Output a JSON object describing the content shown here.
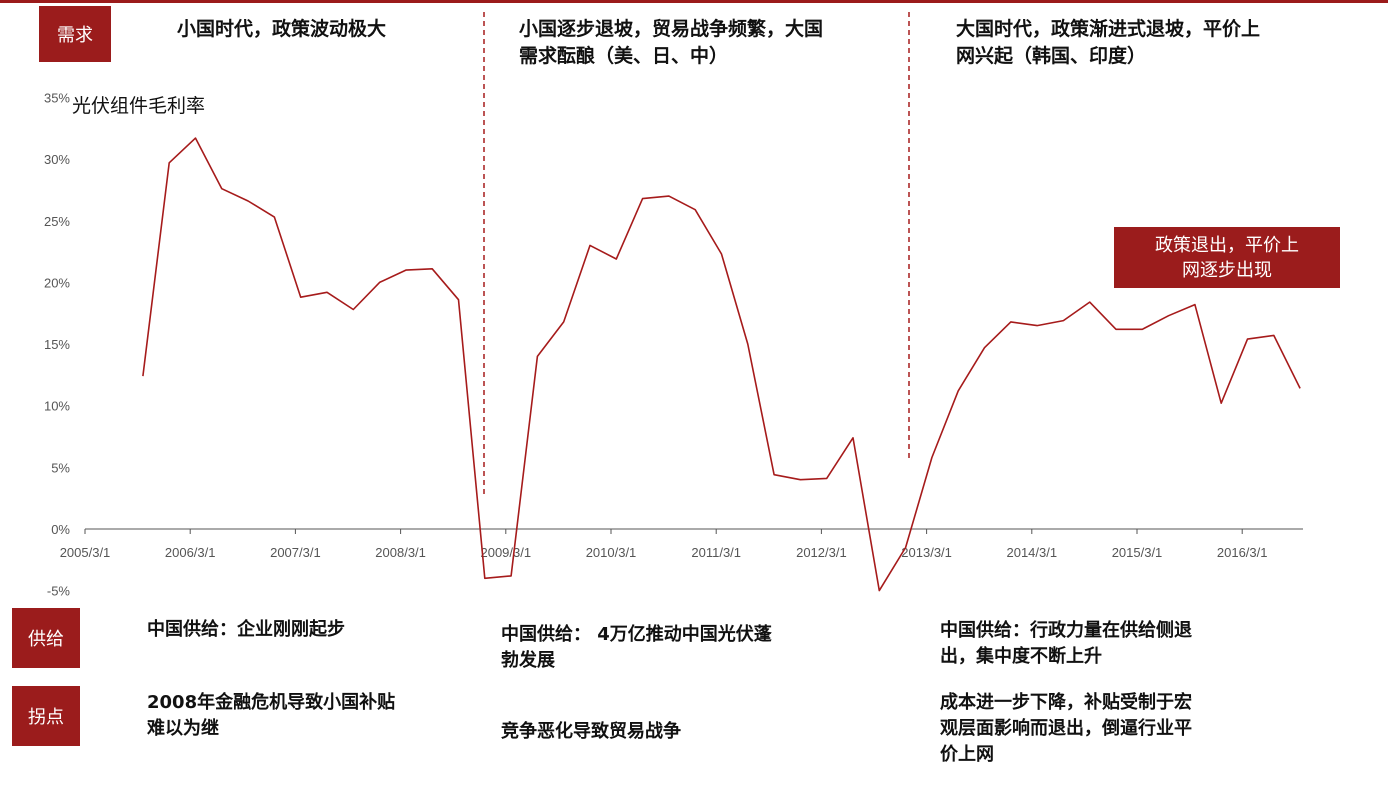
{
  "labels": {
    "demand": "需求",
    "supply": "供给",
    "turning_point": "拐点"
  },
  "phases": [
    "小国时代，政策波动极大",
    "小国逐步退坡，贸易战争频繁，大国\n需求酝酿（美、日、中）",
    "大国时代，政策渐进式退坡，平价上\n网兴起（韩国、印度）"
  ],
  "callout": "政策退出，平价上\n网逐步出现",
  "supply_notes": [
    "中国供给：企业刚刚起步",
    "中国供给： 4万亿推动中国光伏蓬\n勃发展",
    "中国供给：行政力量在供给侧退\n出，集中度不断上升"
  ],
  "turning_notes": [
    "2008年金融危机导致小国补贴\n难以为继",
    "竞争恶化导致贸易战争",
    "成本进一步下降，补贴受制于宏\n观层面影响而退出，倒逼行业平\n价上网"
  ],
  "chart_data": {
    "type": "line",
    "title": "",
    "ylabel": "光伏组件毛利率",
    "xlabel": "",
    "ylim": [
      -0.05,
      0.35
    ],
    "xlim": [
      2005.0,
      2016.6
    ],
    "grid": false,
    "yticks": [
      "-5%",
      "0%",
      "5%",
      "10%",
      "15%",
      "20%",
      "25%",
      "30%",
      "35%"
    ],
    "xticks": [
      "2005/3/1",
      "2006/3/1",
      "2007/3/1",
      "2008/3/1",
      "2009/3/1",
      "2010/3/1",
      "2011/3/1",
      "2012/3/1",
      "2013/3/1",
      "2014/3/1",
      "2015/3/1",
      "2016/3/1"
    ],
    "phase_dividers_x": [
      2008.8,
      2012.8
    ],
    "series": [
      {
        "name": "",
        "color": "#a61b1b",
        "x": [
          2005.55,
          2005.8,
          2006.05,
          2006.3,
          2006.55,
          2006.8,
          2007.05,
          2007.3,
          2007.55,
          2007.8,
          2008.05,
          2008.3,
          2008.55,
          2008.8,
          2009.05,
          2009.3,
          2009.55,
          2009.8,
          2010.05,
          2010.3,
          2010.55,
          2010.8,
          2011.05,
          2011.3,
          2011.55,
          2011.8,
          2012.05,
          2012.3,
          2012.55,
          2012.8,
          2013.05,
          2013.3,
          2013.55,
          2013.8,
          2014.05,
          2014.3,
          2014.55,
          2014.8,
          2015.05,
          2015.3,
          2015.55,
          2015.8,
          2016.05,
          2016.3,
          2016.55
        ],
        "y": [
          0.124,
          0.297,
          0.317,
          0.276,
          0.266,
          0.253,
          0.188,
          0.192,
          0.178,
          0.2,
          0.21,
          0.211,
          0.186,
          -0.04,
          -0.038,
          0.14,
          0.168,
          0.23,
          0.219,
          0.268,
          0.27,
          0.259,
          0.223,
          0.15,
          0.044,
          0.04,
          0.041,
          0.074,
          -0.05,
          -0.015,
          0.058,
          0.112,
          0.147,
          0.168,
          0.165,
          0.169,
          0.184,
          0.162,
          0.162,
          0.173,
          0.182,
          0.102,
          0.154,
          0.157,
          0.114
        ]
      }
    ]
  }
}
